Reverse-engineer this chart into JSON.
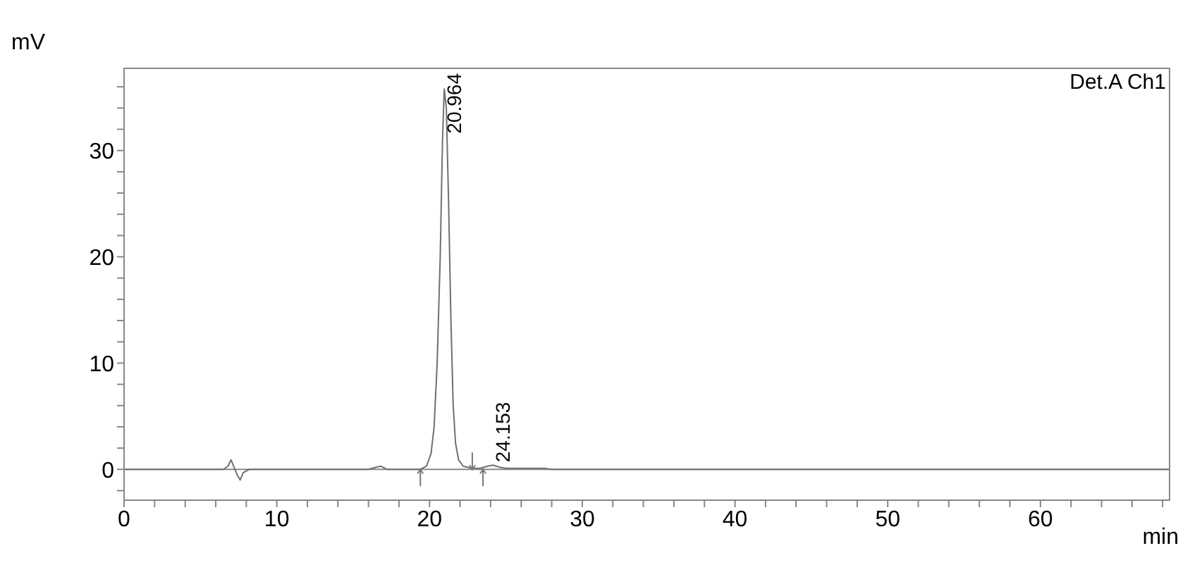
{
  "chart_data": {
    "type": "line",
    "xlabel": "min",
    "ylabel": "mV",
    "x": [
      0,
      6.5,
      6.8,
      7.0,
      7.2,
      7.4,
      7.6,
      7.8,
      8.2,
      16.0,
      16.5,
      16.8,
      17.2,
      19.4,
      19.8,
      20.1,
      20.3,
      20.5,
      20.7,
      20.85,
      20.964,
      21.1,
      21.25,
      21.4,
      21.55,
      21.7,
      21.9,
      22.2,
      22.8,
      23.3,
      23.8,
      24.153,
      24.6,
      25,
      27.5,
      28,
      68.5
    ],
    "series": [
      {
        "color": "#707070",
        "values": [
          0,
          0,
          0.3,
          0.9,
          0.2,
          -0.5,
          -1.0,
          -0.3,
          0,
          0,
          0.2,
          0.3,
          0,
          0,
          0.3,
          1.5,
          4,
          10,
          20,
          31,
          35.8,
          34,
          25,
          14,
          6,
          2.5,
          0.9,
          0.3,
          0.1,
          0.1,
          0.3,
          0.4,
          0.2,
          0.1,
          0.1,
          0,
          0
        ]
      }
    ],
    "xlim": [
      0,
      68.5
    ],
    "xticks": [
      0,
      {
        "value": 2,
        "label": null
      },
      {
        "value": 4,
        "label": null
      },
      {
        "value": 6,
        "label": null
      },
      {
        "value": 8,
        "label": null
      },
      10,
      {
        "value": 12,
        "label": null
      },
      {
        "value": 14,
        "label": null
      },
      {
        "value": 16,
        "label": null
      },
      {
        "value": 18,
        "label": null
      },
      20,
      {
        "value": 22,
        "label": null
      },
      {
        "value": 24,
        "label": null
      },
      {
        "value": 26,
        "label": null
      },
      {
        "value": 28,
        "label": null
      },
      30,
      {
        "value": 32,
        "label": null
      },
      {
        "value": 34,
        "label": null
      },
      {
        "value": 36,
        "label": null
      },
      {
        "value": 38,
        "label": null
      },
      40,
      {
        "value": 42,
        "label": null
      },
      {
        "value": 44,
        "label": null
      },
      {
        "value": 46,
        "label": null
      },
      {
        "value": 48,
        "label": null
      },
      50,
      {
        "value": 52,
        "label": null
      },
      {
        "value": 54,
        "label": null
      },
      {
        "value": 56,
        "label": null
      },
      {
        "value": 58,
        "label": null
      },
      60,
      {
        "value": 62,
        "label": null
      },
      {
        "value": 64,
        "label": null
      },
      {
        "value": 66,
        "label": null
      },
      {
        "value": 68,
        "label": null
      }
    ],
    "ylim": [
      -2.9,
      37.8
    ],
    "yticks": [
      {
        "value": -2,
        "label": null
      },
      0,
      {
        "value": 2,
        "label": null
      },
      {
        "value": 4,
        "label": null
      },
      {
        "value": 6,
        "label": null
      },
      {
        "value": 8,
        "label": null
      },
      10,
      {
        "value": 12,
        "label": null
      },
      {
        "value": 14,
        "label": null
      },
      {
        "value": 16,
        "label": null
      },
      {
        "value": 18,
        "label": null
      },
      20,
      {
        "value": 22,
        "label": null
      },
      {
        "value": 24,
        "label": null
      },
      {
        "value": 26,
        "label": null
      },
      {
        "value": 28,
        "label": null
      },
      30,
      {
        "value": 32,
        "label": null
      },
      {
        "value": 34,
        "label": null
      },
      {
        "value": 36,
        "label": null
      }
    ],
    "annotations": [
      {
        "text": "20.964",
        "x": 20.964,
        "y": 35.8
      },
      {
        "text": "24.153",
        "x": 24.153,
        "y": 0.4
      },
      "Det.A Ch1"
    ],
    "ref_lines": [
      {
        "axis": "y",
        "value": 0,
        "color": "#888888"
      }
    ],
    "grid": false,
    "legend": false,
    "marker": "none",
    "line_style": "solid"
  }
}
